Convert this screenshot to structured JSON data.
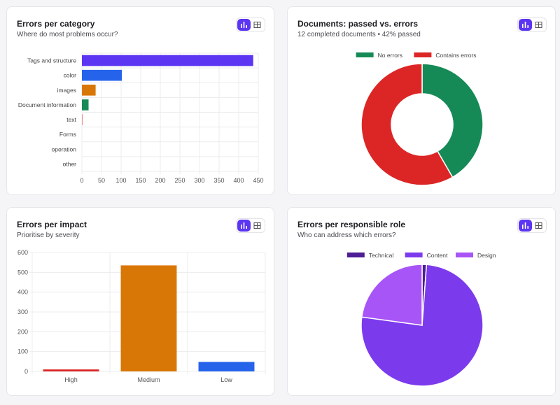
{
  "cards": [
    {
      "title": "Errors per category",
      "subtitle": "Where do most problems occur?"
    },
    {
      "title": "Documents: passed vs. errors",
      "subtitle": "12 completed documents • 42% passed"
    },
    {
      "title": "Errors per impact",
      "subtitle": "Prioritise by severity"
    },
    {
      "title": "Errors per responsible role",
      "subtitle": "Who can address which errors?"
    }
  ],
  "icons": {
    "chart_view": "bar-chart-icon",
    "table_view": "table-icon"
  },
  "colors": {
    "accent": "#5b35f2"
  },
  "chart_data": [
    {
      "type": "bar",
      "orientation": "horizontal",
      "categories": [
        "Tags and structure",
        "color",
        "images",
        "Document information",
        "text",
        "Forms",
        "operation",
        "other"
      ],
      "values": [
        437,
        102,
        35,
        17,
        1,
        0,
        0,
        0
      ],
      "colors": [
        "#5b35f2",
        "#2563eb",
        "#d97706",
        "#168a56",
        "#dc2626",
        "#dc2626",
        "#dc2626",
        "#dc2626"
      ],
      "xlim": [
        0,
        450
      ],
      "xticks": [
        0,
        50,
        100,
        150,
        200,
        250,
        300,
        350,
        400,
        450
      ],
      "grid": true
    },
    {
      "type": "pie",
      "variant": "doughnut",
      "labels": [
        "No errors",
        "Contains errors"
      ],
      "values": [
        5,
        7
      ],
      "colors": [
        "#168a56",
        "#dc2626"
      ],
      "legend": "top"
    },
    {
      "type": "bar",
      "orientation": "vertical",
      "categories": [
        "High",
        "Medium",
        "Low"
      ],
      "values": [
        10,
        535,
        48
      ],
      "colors": [
        "#dc2626",
        "#d97706",
        "#2563eb"
      ],
      "ylim": [
        0,
        600
      ],
      "yticks": [
        0,
        100,
        200,
        300,
        400,
        500,
        600
      ],
      "grid": true
    },
    {
      "type": "pie",
      "labels": [
        "Technical",
        "Content",
        "Design"
      ],
      "values": [
        7,
        456,
        137
      ],
      "colors": [
        "#4c1d95",
        "#7c3aed",
        "#a855f7"
      ],
      "legend": "top"
    }
  ]
}
